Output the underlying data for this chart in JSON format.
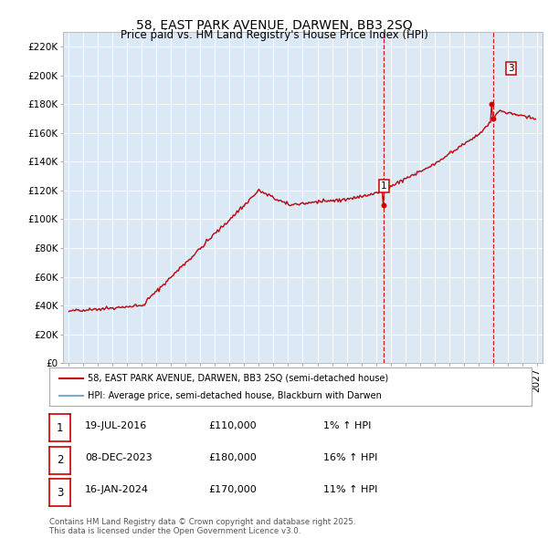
{
  "title1": "58, EAST PARK AVENUE, DARWEN, BB3 2SQ",
  "title2": "Price paid vs. HM Land Registry's House Price Index (HPI)",
  "background_color": "#dce9f5",
  "ylim": [
    0,
    230000
  ],
  "yticks": [
    0,
    20000,
    40000,
    60000,
    80000,
    100000,
    120000,
    140000,
    160000,
    180000,
    200000,
    220000
  ],
  "xlim_start": 1994.6,
  "xlim_end": 2027.4,
  "legend_entries": [
    "58, EAST PARK AVENUE, DARWEN, BB3 2SQ (semi-detached house)",
    "HPI: Average price, semi-detached house, Blackburn with Darwen"
  ],
  "transactions": [
    {
      "label": "1",
      "date": "19-JUL-2016",
      "price": 110000,
      "pct": "1% ↑ HPI",
      "x": 2016.54
    },
    {
      "label": "2",
      "date": "08-DEC-2023",
      "price": 180000,
      "pct": "16% ↑ HPI",
      "x": 2023.93
    },
    {
      "label": "3",
      "date": "16-JAN-2024",
      "price": 170000,
      "pct": "11% ↑ HPI",
      "x": 2024.04
    }
  ],
  "table_rows": [
    [
      "1",
      "19-JUL-2016",
      "£110,000",
      "1% ↑ HPI"
    ],
    [
      "2",
      "08-DEC-2023",
      "£180,000",
      "16% ↑ HPI"
    ],
    [
      "3",
      "16-JAN-2024",
      "£170,000",
      "11% ↑ HPI"
    ]
  ],
  "footer": "Contains HM Land Registry data © Crown copyright and database right 2025.\nThis data is licensed under the Open Government Licence v3.0.",
  "line_color_red": "#cc0000",
  "line_color_blue": "#7aaacc",
  "marker_label_color": "#cc0000",
  "dashed_line_color": "#cc0000"
}
